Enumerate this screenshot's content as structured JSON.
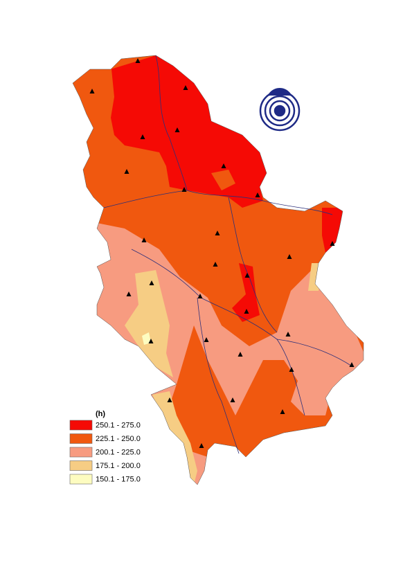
{
  "legend": {
    "title": "(h)",
    "items": [
      {
        "label": "250.1 - 275.0",
        "color": "#f50a05"
      },
      {
        "label": "225.1 - 250.0",
        "color": "#f0580f"
      },
      {
        "label": "200.1 - 225.0",
        "color": "#f79b80"
      },
      {
        "label": "175.1 - 200.0",
        "color": "#f6cd84"
      },
      {
        "label": "150.1 - 175.0",
        "color": "#fdfcc0"
      }
    ]
  }
}
